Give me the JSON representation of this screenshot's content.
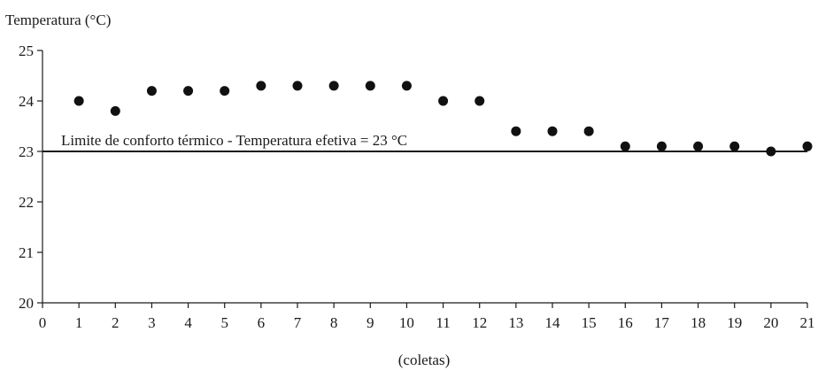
{
  "chart_data": {
    "type": "scatter",
    "title": "",
    "ylabel": "Temperatura (°C)",
    "xlabel": "(coletas)",
    "xlim": [
      0,
      21
    ],
    "ylim": [
      20,
      25
    ],
    "x_ticks": [
      0,
      1,
      2,
      3,
      4,
      5,
      6,
      7,
      8,
      9,
      10,
      11,
      12,
      13,
      14,
      15,
      16,
      17,
      18,
      19,
      20,
      21
    ],
    "y_ticks": [
      20,
      21,
      22,
      23,
      24,
      25
    ],
    "grid": false,
    "series": [
      {
        "x": [
          1,
          2,
          3,
          4,
          5,
          6,
          7,
          8,
          9,
          10,
          11,
          12,
          13,
          14,
          15,
          16,
          17,
          18,
          19,
          20,
          21
        ],
        "values": [
          24.0,
          23.8,
          24.2,
          24.2,
          24.2,
          24.3,
          24.3,
          24.3,
          24.3,
          24.3,
          24.0,
          24.0,
          23.4,
          23.4,
          23.4,
          23.1,
          23.1,
          23.1,
          23.1,
          23.0,
          23.1
        ]
      }
    ],
    "reference_line": {
      "y": 23,
      "label": "Limite de conforto térmico - Temperatura efetiva = 23 °C"
    },
    "colors": {
      "point": "#111111",
      "line": "#1a1a1a"
    }
  }
}
